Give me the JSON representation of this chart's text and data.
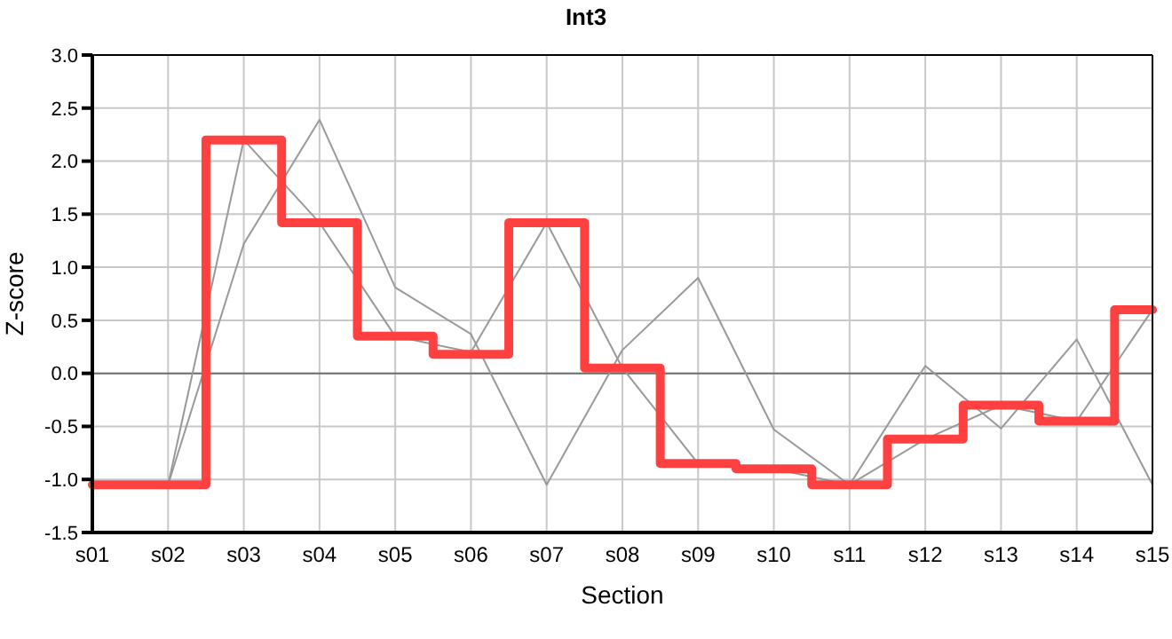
{
  "chart_data": {
    "type": "line",
    "title": "Int3",
    "xlabel": "Section",
    "ylabel": "Z-score",
    "categories": [
      "s01",
      "s02",
      "s03",
      "s04",
      "s05",
      "s06",
      "s07",
      "s08",
      "s09",
      "s10",
      "s11",
      "s12",
      "s13",
      "s14",
      "s15"
    ],
    "series": [
      {
        "color": "#999999",
        "values": [
          -1.05,
          -1.05,
          1.22,
          2.39,
          0.81,
          0.37,
          -1.05,
          0.22,
          0.9,
          -0.53,
          -1.05,
          0.07,
          -0.52,
          0.32,
          -1.05
        ]
      },
      {
        "color": "#999999",
        "values": [
          -1.05,
          -1.05,
          2.2,
          1.42,
          0.35,
          0.2,
          1.42,
          0.05,
          -0.85,
          -0.9,
          -1.05,
          -0.62,
          -0.3,
          -0.45,
          0.6
        ]
      },
      {
        "type": "step",
        "color": "#ff4040",
        "values": [
          -1.05,
          -1.05,
          2.2,
          1.42,
          0.35,
          0.18,
          1.42,
          0.05,
          -0.85,
          -0.9,
          -1.05,
          -0.62,
          -0.3,
          -0.45,
          0.6
        ]
      }
    ],
    "ylim": [
      -1.5,
      3.0
    ],
    "yticks": [
      {
        "value": -1.5,
        "label": "-1.5"
      },
      {
        "value": -1,
        "label": "-1.0"
      },
      {
        "value": -0.5,
        "label": "-0.5"
      },
      {
        "value": 0,
        "label": "0.0"
      },
      {
        "value": 0.5,
        "label": "0.5"
      },
      {
        "value": 1,
        "label": "1.0"
      },
      {
        "value": 1.5,
        "label": "1.5"
      },
      {
        "value": 2,
        "label": "2.0"
      },
      {
        "value": 2.5,
        "label": "2.5"
      },
      {
        "value": 3,
        "label": "3.0"
      }
    ],
    "ref_lines": [
      {
        "axis": "y",
        "value": 0,
        "color": "#707070"
      }
    ],
    "grid": true,
    "marker": "none",
    "line_style": "solid"
  }
}
